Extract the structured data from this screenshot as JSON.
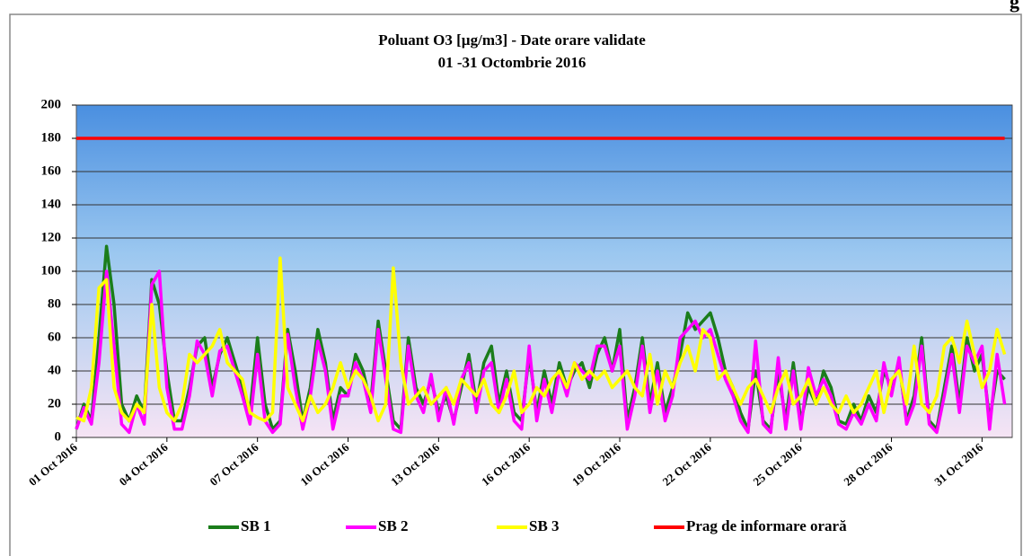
{
  "header_fragment": "g",
  "chart_data": {
    "type": "line",
    "title": "Poluant O3 [µg/m3] - Date orare validate",
    "subtitle": "01 -31 Octombrie 2016",
    "categories": [
      "01 Oct 2016",
      null,
      null,
      null,
      null,
      null,
      null,
      null,
      null,
      null,
      null,
      null,
      "04 Oct 2016",
      null,
      null,
      null,
      null,
      null,
      null,
      null,
      null,
      null,
      null,
      null,
      "07 Oct 2016",
      null,
      null,
      null,
      null,
      null,
      null,
      null,
      null,
      null,
      null,
      null,
      "10 Oct 2016",
      null,
      null,
      null,
      null,
      null,
      null,
      null,
      null,
      null,
      null,
      null,
      "13 Oct 2016",
      null,
      null,
      null,
      null,
      null,
      null,
      null,
      null,
      null,
      null,
      null,
      "16 Oct 2016",
      null,
      null,
      null,
      null,
      null,
      null,
      null,
      null,
      null,
      null,
      null,
      "19 Oct 2016",
      null,
      null,
      null,
      null,
      null,
      null,
      null,
      null,
      null,
      null,
      null,
      "22 Oct 2016",
      null,
      null,
      null,
      null,
      null,
      null,
      null,
      null,
      null,
      null,
      null,
      "25 Oct 2016",
      null,
      null,
      null,
      null,
      null,
      null,
      null,
      null,
      null,
      null,
      null,
      "28 Oct 2016",
      null,
      null,
      null,
      null,
      null,
      null,
      null,
      null,
      null,
      null,
      null,
      "31 Oct 2016",
      null,
      null,
      null
    ],
    "ylim": [
      0,
      200
    ],
    "yticks": [
      0,
      20,
      40,
      60,
      80,
      100,
      120,
      140,
      160,
      180,
      200
    ],
    "grid": true,
    "series": [
      {
        "name": "SB 1",
        "color": "#1b7d1b",
        "values": [
          5,
          20,
          10,
          60,
          115,
          80,
          20,
          10,
          25,
          15,
          95,
          80,
          40,
          10,
          10,
          30,
          55,
          60,
          30,
          50,
          60,
          45,
          30,
          15,
          60,
          20,
          5,
          10,
          65,
          40,
          10,
          30,
          65,
          45,
          10,
          30,
          25,
          50,
          40,
          20,
          70,
          40,
          10,
          5,
          60,
          30,
          20,
          35,
          15,
          25,
          10,
          30,
          50,
          20,
          45,
          55,
          20,
          40,
          15,
          10,
          50,
          15,
          40,
          20,
          45,
          30,
          40,
          45,
          30,
          50,
          60,
          40,
          65,
          10,
          30,
          60,
          20,
          45,
          15,
          30,
          50,
          75,
          65,
          70,
          75,
          60,
          40,
          30,
          15,
          5,
          40,
          10,
          5,
          40,
          10,
          45,
          10,
          30,
          20,
          40,
          30,
          10,
          8,
          20,
          10,
          25,
          15,
          40,
          30,
          45,
          10,
          25,
          60,
          10,
          5,
          30,
          55,
          20,
          60,
          40,
          50,
          10,
          40,
          35
        ]
      },
      {
        "name": "SB 2",
        "color": "#ff00ff",
        "values": [
          5,
          18,
          8,
          45,
          100,
          55,
          8,
          3,
          20,
          8,
          92,
          100,
          30,
          5,
          5,
          25,
          58,
          50,
          25,
          52,
          55,
          40,
          25,
          8,
          50,
          10,
          3,
          8,
          62,
          30,
          5,
          25,
          58,
          40,
          5,
          25,
          25,
          45,
          35,
          15,
          65,
          35,
          5,
          3,
          55,
          25,
          15,
          38,
          10,
          30,
          8,
          35,
          45,
          15,
          40,
          45,
          15,
          35,
          10,
          5,
          55,
          10,
          35,
          15,
          40,
          25,
          45,
          40,
          35,
          55,
          55,
          40,
          55,
          5,
          25,
          55,
          15,
          40,
          10,
          25,
          60,
          65,
          70,
          60,
          65,
          50,
          35,
          25,
          10,
          3,
          58,
          8,
          3,
          48,
          5,
          40,
          5,
          42,
          25,
          35,
          25,
          8,
          5,
          15,
          8,
          20,
          10,
          45,
          25,
          48,
          8,
          20,
          55,
          8,
          3,
          25,
          50,
          15,
          55,
          45,
          55,
          5,
          50,
          20
        ]
      },
      {
        "name": "SB 3",
        "color": "#ffff00",
        "values": [
          12,
          10,
          30,
          90,
          95,
          30,
          15,
          10,
          20,
          15,
          80,
          30,
          15,
          10,
          20,
          50,
          45,
          50,
          55,
          65,
          45,
          40,
          35,
          15,
          12,
          10,
          15,
          108,
          30,
          20,
          10,
          25,
          15,
          20,
          30,
          45,
          30,
          40,
          35,
          25,
          10,
          20,
          102,
          45,
          20,
          25,
          30,
          20,
          25,
          30,
          20,
          35,
          30,
          25,
          35,
          20,
          15,
          25,
          40,
          15,
          20,
          30,
          25,
          35,
          40,
          30,
          45,
          35,
          40,
          35,
          40,
          30,
          35,
          40,
          30,
          25,
          50,
          20,
          40,
          30,
          45,
          55,
          40,
          65,
          60,
          35,
          40,
          30,
          20,
          30,
          35,
          25,
          15,
          30,
          40,
          20,
          25,
          35,
          20,
          30,
          20,
          15,
          25,
          15,
          20,
          30,
          40,
          15,
          35,
          40,
          20,
          55,
          20,
          15,
          25,
          55,
          60,
          45,
          70,
          50,
          30,
          40,
          65,
          50
        ]
      },
      {
        "name": "Prag de informare orară",
        "color": "#ff0000",
        "values": [
          180,
          180,
          180,
          180,
          180,
          180,
          180,
          180,
          180,
          180,
          180,
          180,
          180,
          180,
          180,
          180,
          180,
          180,
          180,
          180,
          180,
          180,
          180,
          180,
          180,
          180,
          180,
          180,
          180,
          180,
          180,
          180,
          180,
          180,
          180,
          180,
          180,
          180,
          180,
          180,
          180,
          180,
          180,
          180,
          180,
          180,
          180,
          180,
          180,
          180,
          180,
          180,
          180,
          180,
          180,
          180,
          180,
          180,
          180,
          180,
          180,
          180,
          180,
          180,
          180,
          180,
          180,
          180,
          180,
          180,
          180,
          180,
          180,
          180,
          180,
          180,
          180,
          180,
          180,
          180,
          180,
          180,
          180,
          180,
          180,
          180,
          180,
          180,
          180,
          180,
          180,
          180,
          180,
          180,
          180,
          180,
          180,
          180,
          180,
          180,
          180,
          180,
          180,
          180,
          180,
          180,
          180,
          180,
          180,
          180,
          180,
          180,
          180,
          180,
          180,
          180,
          180,
          180,
          180,
          180,
          180,
          180,
          180,
          180
        ]
      }
    ]
  }
}
